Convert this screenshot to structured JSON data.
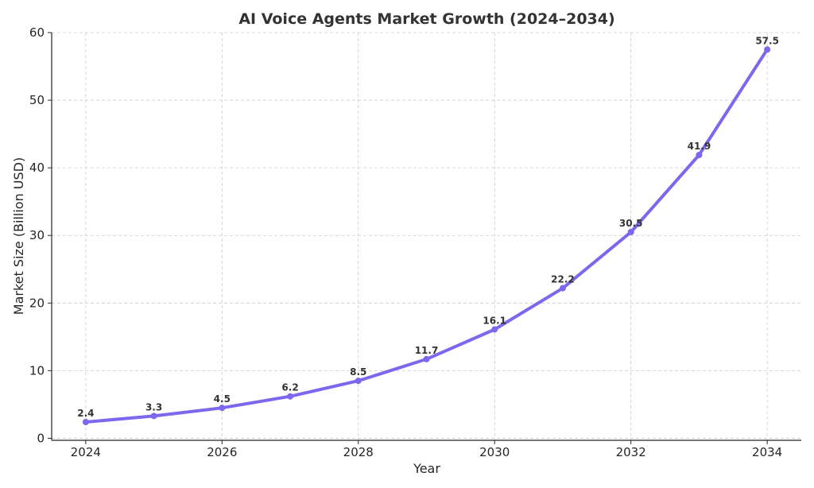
{
  "chart_data": {
    "type": "line",
    "title": "AI Voice Agents Market Growth (2024–2034)",
    "xlabel": "Year",
    "ylabel": "Market Size (Billion USD)",
    "x": [
      2024,
      2025,
      2026,
      2027,
      2028,
      2029,
      2030,
      2031,
      2032,
      2033,
      2034
    ],
    "values": [
      2.4,
      3.3,
      4.5,
      6.2,
      8.5,
      11.7,
      16.1,
      22.2,
      30.5,
      41.9,
      57.5
    ],
    "data_labels": [
      "2.4",
      "3.3",
      "4.5",
      "6.2",
      "8.5",
      "11.7",
      "16.1",
      "22.2",
      "30.5",
      "41.9",
      "57.5"
    ],
    "xticks": [
      "2024",
      "2026",
      "2028",
      "2030",
      "2032",
      "2034"
    ],
    "xtick_values": [
      2024,
      2026,
      2028,
      2030,
      2032,
      2034
    ],
    "yticks": [
      "0",
      "10",
      "20",
      "30",
      "40",
      "50",
      "60"
    ],
    "ytick_values": [
      0,
      10,
      20,
      30,
      40,
      50,
      60
    ],
    "xlim": [
      2023.5,
      2034.5
    ],
    "ylim": [
      -0.3,
      60
    ],
    "grid": true,
    "line_color": "#7b68ee",
    "legend": false
  }
}
